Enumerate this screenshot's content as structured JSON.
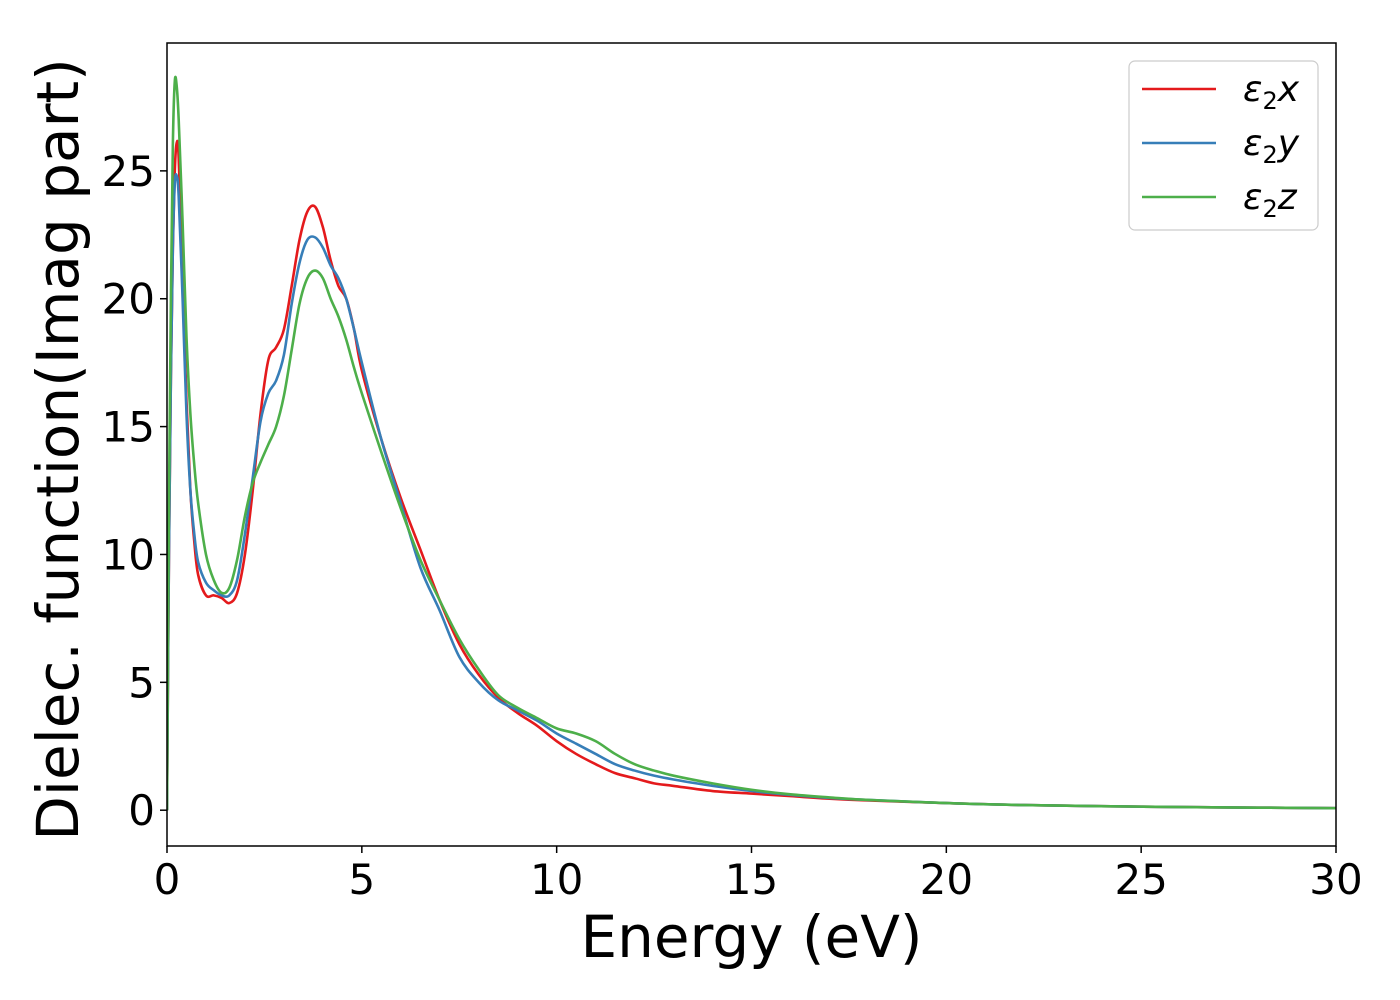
{
  "chart_data": {
    "type": "line",
    "title": "",
    "xlabel": "Energy (eV)",
    "ylabel": "Dielec. function(Imag part)",
    "xlim": [
      0,
      30
    ],
    "ylim": [
      -1.4,
      30
    ],
    "xticks": [
      0,
      5,
      10,
      15,
      20,
      25,
      30
    ],
    "yticks": [
      0,
      5,
      10,
      15,
      20,
      25
    ],
    "grid": false,
    "legend_position": "top-right",
    "series": [
      {
        "name": "ε2x",
        "legend_base": "ε",
        "legend_sub": "2",
        "legend_var": "x",
        "color": "#e41a1c",
        "x": [
          0,
          0.05,
          0.1,
          0.15,
          0.2,
          0.25,
          0.3,
          0.4,
          0.5,
          0.6,
          0.7,
          0.8,
          1.0,
          1.2,
          1.4,
          1.6,
          1.8,
          2.0,
          2.2,
          2.4,
          2.6,
          2.8,
          3.0,
          3.2,
          3.4,
          3.6,
          3.8,
          4.0,
          4.2,
          4.4,
          4.6,
          4.8,
          5.0,
          5.5,
          6.0,
          6.5,
          7.0,
          7.5,
          8.0,
          8.5,
          9.0,
          9.5,
          10.0,
          10.5,
          11.0,
          11.5,
          12.0,
          12.5,
          13.0,
          14.0,
          15.0,
          16.0,
          17.0,
          18.0,
          20.0,
          22.0,
          25.0,
          28.0,
          30.0
        ],
        "y": [
          0,
          10,
          17,
          22,
          25,
          26.1,
          25.5,
          21,
          16,
          12.5,
          10.5,
          9.2,
          8.4,
          8.4,
          8.3,
          8.1,
          8.5,
          10,
          12.5,
          15.5,
          17.6,
          18.1,
          18.8,
          20.5,
          22.3,
          23.4,
          23.6,
          22.8,
          21.5,
          20.5,
          20.0,
          18.8,
          17.2,
          14.5,
          12.2,
          10.2,
          8.2,
          6.5,
          5.3,
          4.4,
          3.8,
          3.3,
          2.7,
          2.2,
          1.8,
          1.45,
          1.25,
          1.05,
          0.95,
          0.75,
          0.65,
          0.55,
          0.45,
          0.38,
          0.28,
          0.2,
          0.14,
          0.1,
          0.08
        ]
      },
      {
        "name": "ε2y",
        "legend_base": "ε",
        "legend_sub": "2",
        "legend_var": "y",
        "color": "#377eb8",
        "x": [
          0,
          0.05,
          0.1,
          0.15,
          0.2,
          0.25,
          0.3,
          0.4,
          0.5,
          0.6,
          0.7,
          0.8,
          1.0,
          1.2,
          1.4,
          1.6,
          1.8,
          2.0,
          2.2,
          2.4,
          2.6,
          2.8,
          3.0,
          3.2,
          3.4,
          3.6,
          3.8,
          4.0,
          4.2,
          4.4,
          4.6,
          4.8,
          5.0,
          5.5,
          6.0,
          6.5,
          7.0,
          7.5,
          8.0,
          8.5,
          9.0,
          9.5,
          10.0,
          10.5,
          11.0,
          11.5,
          12.0,
          12.5,
          13.0,
          14.0,
          15.0,
          16.0,
          17.0,
          18.0,
          20.0,
          22.0,
          25.0,
          28.0,
          30.0
        ],
        "y": [
          0,
          10,
          17,
          22,
          24.5,
          24.8,
          24.0,
          20,
          15.5,
          12.5,
          10.8,
          9.7,
          8.9,
          8.6,
          8.4,
          8.4,
          9.0,
          10.8,
          13.0,
          15.2,
          16.3,
          16.8,
          17.8,
          19.8,
          21.4,
          22.3,
          22.4,
          22.0,
          21.3,
          20.8,
          20.0,
          18.8,
          17.5,
          14.5,
          12.0,
          9.5,
          7.8,
          6.0,
          5.0,
          4.3,
          3.9,
          3.5,
          3.0,
          2.6,
          2.2,
          1.8,
          1.55,
          1.35,
          1.2,
          0.95,
          0.75,
          0.6,
          0.48,
          0.4,
          0.28,
          0.2,
          0.14,
          0.1,
          0.08
        ]
      },
      {
        "name": "ε2z",
        "legend_base": "ε",
        "legend_sub": "2",
        "legend_var": "z",
        "color": "#4daf4a",
        "x": [
          0,
          0.05,
          0.1,
          0.15,
          0.2,
          0.25,
          0.3,
          0.4,
          0.5,
          0.6,
          0.7,
          0.8,
          1.0,
          1.2,
          1.4,
          1.6,
          1.8,
          2.0,
          2.2,
          2.4,
          2.6,
          2.8,
          3.0,
          3.2,
          3.4,
          3.6,
          3.8,
          4.0,
          4.2,
          4.4,
          4.6,
          4.8,
          5.0,
          5.5,
          6.0,
          6.5,
          7.0,
          7.5,
          8.0,
          8.5,
          9.0,
          9.5,
          10.0,
          10.5,
          11.0,
          11.5,
          12.0,
          12.5,
          13.0,
          14.0,
          15.0,
          16.0,
          17.0,
          18.0,
          20.0,
          22.0,
          25.0,
          28.0,
          30.0
        ],
        "y": [
          0,
          12,
          20,
          26,
          28.5,
          28.3,
          27.0,
          23,
          18.5,
          15.5,
          13.5,
          12.0,
          10.0,
          9.0,
          8.5,
          8.7,
          9.8,
          11.5,
          12.8,
          13.6,
          14.3,
          15.0,
          16.2,
          18.0,
          19.8,
          20.8,
          21.1,
          20.8,
          20.0,
          19.3,
          18.4,
          17.3,
          16.3,
          14.0,
          11.8,
          9.8,
          8.2,
          6.7,
          5.5,
          4.5,
          4.0,
          3.6,
          3.2,
          3.0,
          2.7,
          2.2,
          1.8,
          1.55,
          1.35,
          1.05,
          0.8,
          0.62,
          0.5,
          0.4,
          0.28,
          0.2,
          0.14,
          0.1,
          0.08
        ]
      }
    ]
  }
}
